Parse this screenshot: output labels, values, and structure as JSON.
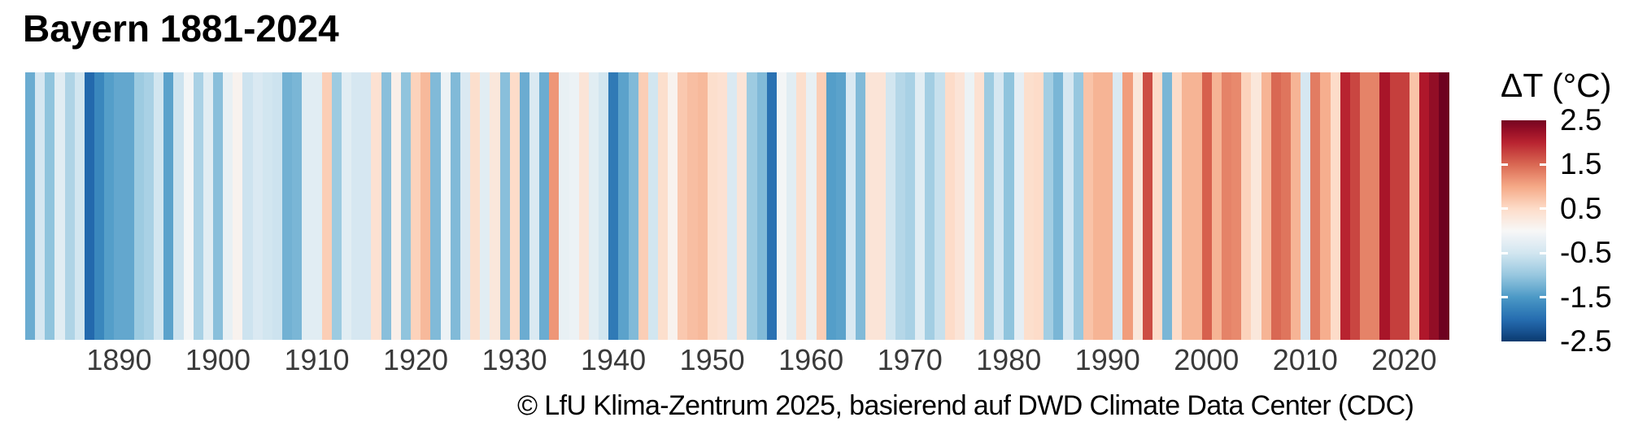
{
  "header": {
    "title": "Bayern 1881-2024"
  },
  "footer": {
    "credit": "© LfU Klima-Zentrum 2025, basierend auf DWD Climate Data Center (CDC)"
  },
  "legend": {
    "title": "ΔT (°C)",
    "tick_labels": [
      "2.5",
      "1.5",
      "0.5",
      "-0.5",
      "-1.5",
      "-2.5"
    ],
    "tick_values": [
      2.5,
      1.5,
      0.5,
      -0.5,
      -1.5,
      -2.5
    ],
    "bar_top_value": 2.5,
    "bar_bottom_value": -2.5
  },
  "x_axis": {
    "tick_years": [
      1890,
      1900,
      1910,
      1920,
      1930,
      1940,
      1950,
      1960,
      1970,
      1980,
      1990,
      2000,
      2010,
      2020
    ]
  },
  "colors": {
    "background": "#ffffff",
    "title_text": "#000000",
    "axis_text": "#3a3a3a",
    "legend_text": "#000000",
    "darkest_red": "#67001f",
    "darkest_blue": "#053061"
  },
  "chart_data": {
    "type": "heatmap",
    "subtype": "warming-stripes",
    "title": "Bayern 1881-2024",
    "legend_label": "ΔT (°C)",
    "unit": "°C",
    "year_start": 1881,
    "year_end": 2024,
    "legend_range": [
      -2.5,
      2.5
    ],
    "color_scale": {
      "name": "RdBu reversed (blue = cold, red = warm)",
      "domain": [
        -2.6,
        2.6
      ],
      "stops": [
        [
          -2.6,
          "#053061"
        ],
        [
          -2.08,
          "#2166ac"
        ],
        [
          -1.56,
          "#4393c3"
        ],
        [
          -1.04,
          "#92c5de"
        ],
        [
          -0.52,
          "#d1e5f0"
        ],
        [
          0,
          "#f7f7f7"
        ],
        [
          0.52,
          "#fddbc7"
        ],
        [
          1.04,
          "#f4a582"
        ],
        [
          1.56,
          "#d6604d"
        ],
        [
          2.08,
          "#b2182b"
        ],
        [
          2.6,
          "#67001f"
        ]
      ]
    },
    "values": [
      -1.3,
      -0.45,
      -1.05,
      -0.3,
      -0.8,
      -0.5,
      -2.05,
      -1.7,
      -1.45,
      -1.35,
      -1.35,
      -0.95,
      -0.85,
      -0.5,
      -1.4,
      -0.55,
      -0.05,
      -0.85,
      -0.3,
      -1.1,
      -0.2,
      0.1,
      -0.55,
      -0.4,
      -0.5,
      -0.55,
      -1.25,
      -1.2,
      -0.3,
      -0.3,
      0.65,
      -0.95,
      -0.3,
      -0.45,
      -0.45,
      0.4,
      -1.1,
      0.15,
      -1.05,
      0.6,
      0.85,
      -1.15,
      -0.15,
      -1.15,
      -0.4,
      0.45,
      -0.3,
      0.3,
      -1.1,
      0.5,
      -1.3,
      -0.4,
      -1.3,
      1.15,
      -0.2,
      -0.15,
      0.35,
      -0.3,
      -0.5,
      -1.85,
      -1.4,
      -1.15,
      0.65,
      -0.5,
      0.45,
      0.1,
      0.7,
      0.8,
      0.85,
      0.45,
      0.4,
      -0.4,
      0.35,
      -0.95,
      -1.15,
      -1.95,
      -0.05,
      -0.3,
      0.45,
      -0.2,
      0.65,
      -1.45,
      -1.4,
      -0.4,
      -1.15,
      0.35,
      0.35,
      -0.5,
      -0.75,
      -0.85,
      -0.3,
      -0.9,
      -0.6,
      0.5,
      0.35,
      -0.15,
      0.4,
      -0.95,
      -0.45,
      -1.05,
      -0.25,
      0.45,
      0.5,
      -0.9,
      -1.2,
      -0.45,
      -1.0,
      0.75,
      0.9,
      0.9,
      -0.4,
      1.1,
      0.3,
      1.7,
      0.5,
      -1.2,
      0.5,
      0.9,
      0.9,
      1.55,
      0.9,
      1.3,
      1.25,
      0.6,
      0.3,
      0.9,
      1.5,
      1.4,
      0.9,
      -0.45,
      1.35,
      0.95,
      0.5,
      2.0,
      1.75,
      1.3,
      1.3,
      2.15,
      1.8,
      1.8,
      0.75,
      2.1,
      2.3,
      2.55
    ]
  }
}
